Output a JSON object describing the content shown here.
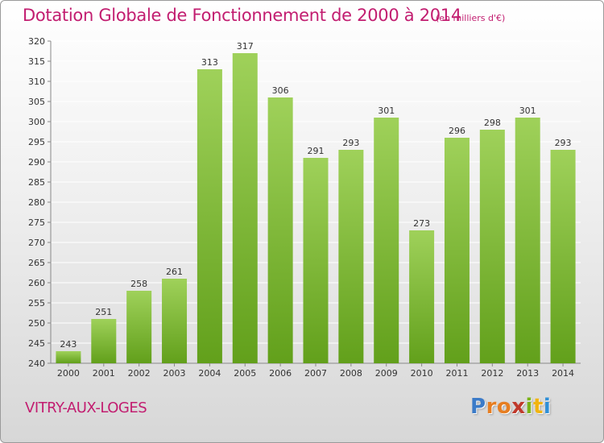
{
  "title": "Dotation Globale de Fonctionnement de 2000 à 2014",
  "subtitle": "(en milliers d'€)",
  "commune": "VITRY-AUX-LOGES",
  "logo": {
    "text": "Proxiti",
    "letter_colors": [
      "#3b7bc8",
      "#e67e22",
      "#e67e22",
      "#c0392b",
      "#7ab317",
      "#f1b40f",
      "#2f8fd6"
    ]
  },
  "colors": {
    "title": "#c21d70",
    "bar_light": "#9fd15a",
    "bar_dark": "#62a01b",
    "grid": "#ffffff",
    "axis_text": "#333333"
  },
  "chart_data": {
    "type": "bar",
    "categories": [
      "2000",
      "2001",
      "2002",
      "2003",
      "2004",
      "2005",
      "2006",
      "2007",
      "2008",
      "2009",
      "2010",
      "2011",
      "2012",
      "2013",
      "2014"
    ],
    "values": [
      243,
      251,
      258,
      261,
      313,
      317,
      306,
      291,
      293,
      301,
      273,
      296,
      298,
      301,
      293
    ],
    "title": "Dotation Globale de Fonctionnement de 2000 à 2014",
    "subtitle": "(en milliers d'€)",
    "ylim": [
      240,
      320
    ],
    "yticks": [
      240,
      245,
      250,
      255,
      260,
      265,
      270,
      275,
      280,
      285,
      290,
      295,
      300,
      305,
      310,
      315,
      320
    ],
    "grid": true,
    "data_labels": true
  }
}
